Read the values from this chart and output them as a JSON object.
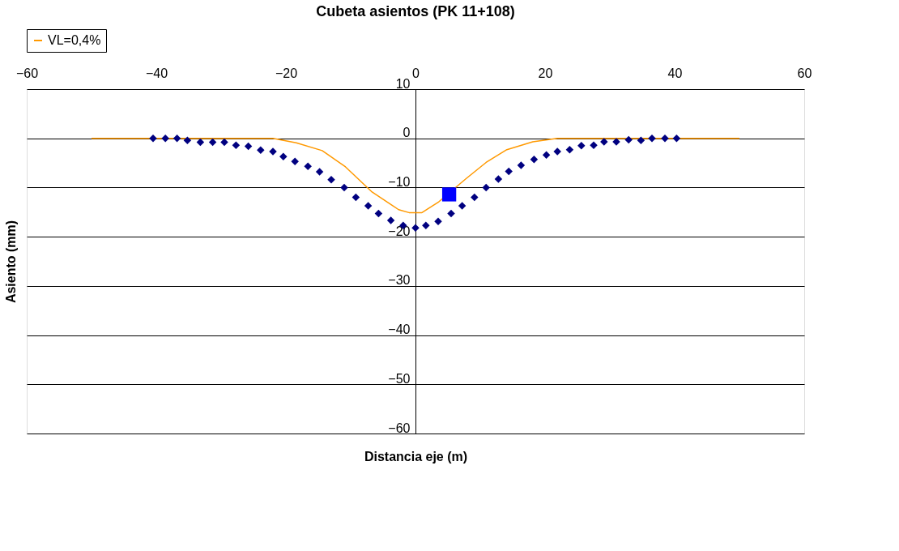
{
  "chart_data": {
    "type": "line",
    "title": "Cubeta asientos (PK 11+108)",
    "xlabel": "Distancia eje (m)",
    "ylabel": "Asiento (mm)",
    "xlim": [
      -60,
      60
    ],
    "xticks": [
      -60,
      -40,
      -20,
      0,
      20,
      40,
      60
    ],
    "ylim": [
      -60,
      10
    ],
    "yticks": [
      -60,
      -50,
      -40,
      -30,
      -20,
      -10,
      0,
      10
    ],
    "grid": "y",
    "legend": "top",
    "series": [
      {
        "name": "VL=0,4%",
        "type": "line",
        "color": "#ff9900",
        "marker": "none",
        "x": [
          -50,
          -22,
          -18.4,
          -14.4,
          -10.8,
          -6.8,
          -2.6,
          -1.0,
          0,
          1.0,
          3.6,
          7.8,
          10.9,
          14.1,
          18.1,
          21.9,
          50
        ],
        "values": [
          0,
          0,
          -0.9,
          -2.5,
          -5.8,
          -10.8,
          -14.5,
          -15.1,
          -15.1,
          -15.1,
          -12.9,
          -8.2,
          -4.9,
          -2.3,
          -0.7,
          0,
          0
        ]
      },
      {
        "type": "scatter",
        "color": "#000080",
        "marker": "diamond",
        "x": [
          -40.5,
          -38.6,
          -36.8,
          -35.2,
          -33.2,
          -31.3,
          -29.5,
          -27.7,
          -25.8,
          -23.9,
          -22.0,
          -20.4,
          -18.6,
          -16.6,
          -14.8,
          -13.0,
          -11.0,
          -9.2,
          -7.3,
          -5.7,
          -3.8,
          -1.9,
          0,
          1.6,
          3.5,
          5.5,
          7.2,
          9.1,
          10.9,
          12.8,
          14.4,
          16.3,
          18.3,
          20.2,
          21.9,
          23.8,
          25.6,
          27.5,
          29.1,
          31.0,
          32.9,
          34.8,
          36.5,
          38.5,
          40.3
        ],
        "values": [
          0,
          0,
          0,
          -0.4,
          -0.8,
          -0.8,
          -0.8,
          -1.4,
          -1.6,
          -2.4,
          -2.7,
          -3.7,
          -4.7,
          -5.7,
          -6.8,
          -8.4,
          -10.0,
          -12.0,
          -13.7,
          -15.3,
          -16.7,
          -17.7,
          -18.2,
          -17.7,
          -16.9,
          -15.3,
          -13.7,
          -12.0,
          -10.0,
          -8.3,
          -6.7,
          -5.5,
          -4.3,
          -3.4,
          -2.7,
          -2.3,
          -1.5,
          -1.4,
          -0.7,
          -0.7,
          -0.3,
          -0.4,
          0,
          0,
          0
        ]
      },
      {
        "type": "scatter",
        "color": "#0000ff",
        "marker": "square",
        "x": [
          5.2
        ],
        "values": [
          -11.4
        ]
      }
    ]
  }
}
